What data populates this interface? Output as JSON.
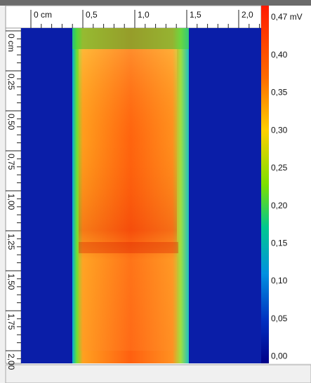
{
  "ruler_top": {
    "labels": [
      "0 cm",
      "0,5",
      "1,0",
      "1,5",
      "2,0"
    ]
  },
  "ruler_left": {
    "labels": [
      "0 cm",
      "0,25",
      "0,50",
      "0,75",
      "1,00",
      "1,25",
      "1,50",
      "1,75",
      "2,00"
    ]
  },
  "colorbar": {
    "labels": [
      "0,47 mV",
      "0,40",
      "0,35",
      "0,30",
      "0,25",
      "0,20",
      "0,15",
      "0,10",
      "0,05",
      "0,00"
    ]
  }
}
